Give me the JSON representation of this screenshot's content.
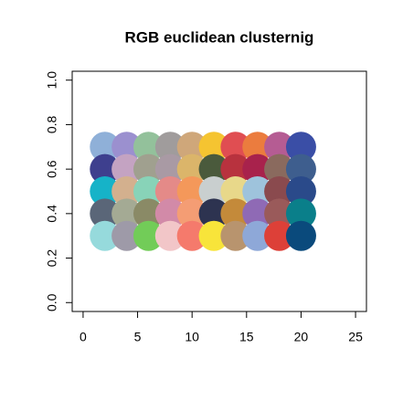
{
  "chart_data": {
    "type": "scatter",
    "title": "RGB euclidean clusternig",
    "x": [
      2,
      4,
      6,
      8,
      10,
      12,
      14,
      16,
      18,
      20,
      2,
      4,
      6,
      8,
      10,
      12,
      14,
      16,
      18,
      20,
      2,
      4,
      6,
      8,
      10,
      12,
      14,
      16,
      18,
      20,
      2,
      4,
      6,
      8,
      10,
      12,
      14,
      16,
      18,
      20,
      2,
      4,
      6,
      8,
      10,
      12,
      14,
      16,
      18,
      20
    ],
    "y": [
      0.7,
      0.7,
      0.7,
      0.7,
      0.7,
      0.7,
      0.7,
      0.7,
      0.7,
      0.7,
      0.6,
      0.6,
      0.6,
      0.6,
      0.6,
      0.6,
      0.6,
      0.6,
      0.6,
      0.6,
      0.5,
      0.5,
      0.5,
      0.5,
      0.5,
      0.5,
      0.5,
      0.5,
      0.5,
      0.5,
      0.4,
      0.4,
      0.4,
      0.4,
      0.4,
      0.4,
      0.4,
      0.4,
      0.4,
      0.4,
      0.3,
      0.3,
      0.3,
      0.3,
      0.3,
      0.3,
      0.3,
      0.3,
      0.3,
      0.3
    ],
    "colors": [
      "#8fb0d8",
      "#9b90cf",
      "#93c19b",
      "#a09c9c",
      "#cfa77a",
      "#f5c431",
      "#e04e52",
      "#eb7c3e",
      "#b55c93",
      "#3a4ea6",
      "#3e3f8e",
      "#c4a3c2",
      "#a0a08f",
      "#a99aa4",
      "#dbb56a",
      "#4a5a3c",
      "#b8323e",
      "#a8224c",
      "#8a6a5e",
      "#3e5e8e",
      "#16b3c8",
      "#d3b08e",
      "#88d3b8",
      "#e48a88",
      "#f4985a",
      "#c9cfcf",
      "#e8d88a",
      "#9ec3dc",
      "#8a4a4e",
      "#2a4a8a",
      "#5a6678",
      "#a4aa94",
      "#8a8a66",
      "#d28aa8",
      "#f49d74",
      "#2d3350",
      "#c48a3a",
      "#8f6ab5",
      "#9a5a5a",
      "#0a7f8a",
      "#96dadc",
      "#9e9aa8",
      "#72cc58",
      "#f2c6c8",
      "#f57a6c",
      "#f8e43a",
      "#b8946e",
      "#8ea8d8",
      "#dd4038",
      "#0a4a7c"
    ],
    "xlim": [
      -1,
      26
    ],
    "xticks": [
      0,
      5,
      10,
      15,
      20,
      25
    ],
    "ylim": [
      -0.04,
      1.04
    ],
    "yticks": [
      {
        "value": 0,
        "label": "0.0"
      },
      0.2,
      0.4,
      0.6,
      0.8,
      {
        "value": 1,
        "label": "1.0"
      }
    ]
  }
}
